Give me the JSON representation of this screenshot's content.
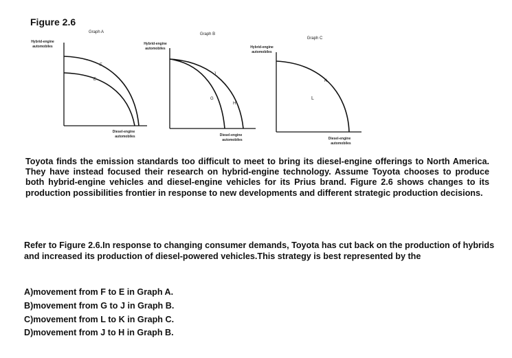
{
  "figure_title": "Figure 2.6",
  "graphs": [
    {
      "title": "Graph A",
      "ylabel": [
        "Hybrid-engine",
        "automobiles"
      ],
      "xlabel": [
        "Diesel-engine",
        "automobiles"
      ],
      "points": [
        "F",
        "E"
      ]
    },
    {
      "title": "Graph B",
      "ylabel": [
        "Hybrid-engine",
        "automobiles"
      ],
      "xlabel": [
        "Diesel-engine",
        "automobiles"
      ],
      "points": [
        "J",
        "G",
        "H"
      ]
    },
    {
      "title": "Graph C",
      "ylabel": [
        "Hybrid-engine",
        "automobiles"
      ],
      "xlabel": [
        "Diesel-engine",
        "automobiles"
      ],
      "points": [
        "K",
        "L"
      ]
    }
  ],
  "passage": "Toyota finds the emission standards too difficult to meet to bring its diesel-engine offerings to North America. They have instead focused their research on hybrid-engine technology. Assume Toyota chooses to produce both hybrid-engine vehicles and diesel-engine vehicles for its Prius brand. Figure 2.6 shows changes to its production possibilities frontier in response to new developments and different strategic production decisions.",
  "question": "Refer to Figure 2.6.In response to changing consumer demands, Toyota has cut back on the production of hybrids and increased its production of diesel-powered vehicles.This strategy is best represented by the",
  "options": [
    "A)movement from F to E in Graph A.",
    "B)movement from G to J in Graph B.",
    "C)movement from L to K in Graph C.",
    "D)movement from J to H in Graph B."
  ]
}
